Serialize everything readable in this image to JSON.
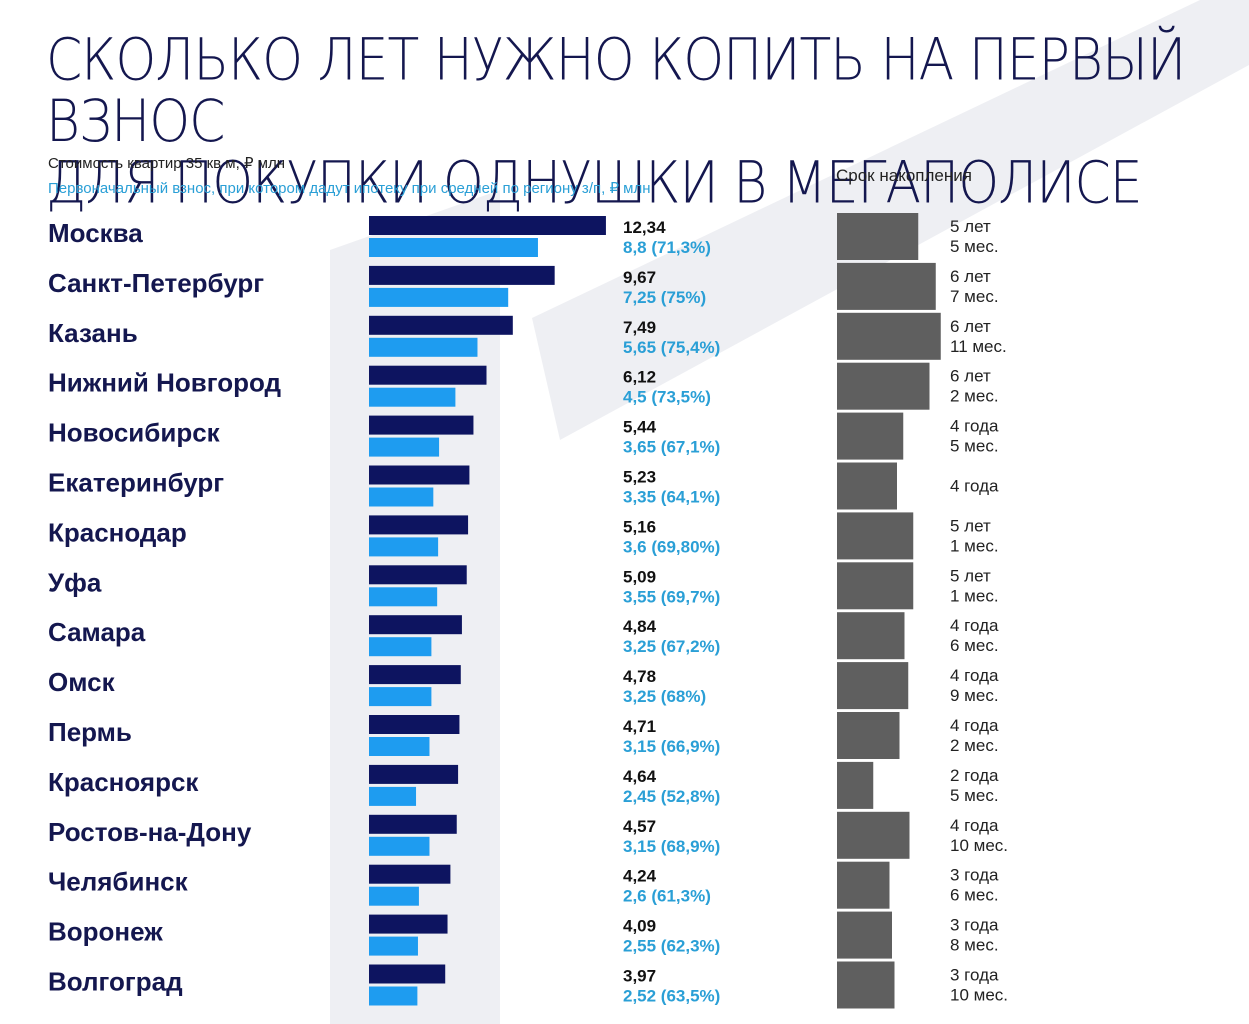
{
  "chart_data": {
    "type": "bar",
    "title_lines": [
      "Сколько лет нужно копить на первый взнос",
      "для покупки однушки в мегаполисе"
    ],
    "subtitle_price": "Стоимость квартир 35 кв м, ₽ млн",
    "subtitle_down": "Первоначальный взнос, при котором дадут ипотеку при средней по региону з/п, ₽ млн",
    "term_header": "Срок накопления",
    "colors": {
      "price": "#0d1460",
      "down": "#1e9cf0",
      "term": "#5f5f5f",
      "title": "#14174f",
      "down_label": "#2a9fd6"
    },
    "categories": [
      "Москва",
      "Санкт-Петербург",
      "Казань",
      "Нижний Новгород",
      "Новосибирск",
      "Екатеринбург",
      "Краснодар",
      "Уфа",
      "Самара",
      "Омск",
      "Пермь",
      "Красноярск",
      "Ростов-на-Дону",
      "Челябинск",
      "Воронеж",
      "Волгоград"
    ],
    "series": [
      {
        "name": "Стоимость квартир 35 кв м, ₽ млн",
        "values": [
          12.34,
          9.67,
          7.49,
          6.12,
          5.44,
          5.23,
          5.16,
          5.09,
          4.84,
          4.78,
          4.71,
          4.64,
          4.57,
          4.24,
          4.09,
          3.97
        ],
        "labels": [
          "12,34",
          "9,67",
          "7,49",
          "6,12",
          "5,44",
          "5,23",
          "5,16",
          "5,09",
          "4,84",
          "4,78",
          "4,71",
          "4,64",
          "4,57",
          "4,24",
          "4,09",
          "3,97"
        ]
      },
      {
        "name": "Первоначальный взнос, при котором дадут ипотеку при средней по региону з/п, ₽ млн",
        "values": [
          8.8,
          7.25,
          5.65,
          4.5,
          3.65,
          3.35,
          3.6,
          3.55,
          3.25,
          3.25,
          3.15,
          2.45,
          3.15,
          2.6,
          2.55,
          2.52
        ],
        "labels": [
          "8,8 (71,3%)",
          "7,25 (75%)",
          "5,65 (75,4%)",
          "4,5 (73,5%)",
          "3,65 (67,1%)",
          "3,35 (64,1%)",
          "3,6 (69,80%)",
          "3,55 (69,7%)",
          "3,25 (67,2%)",
          "3,25 (68%)",
          "3,15 (66,9%)",
          "2,45 (52,8%)",
          "3,15 (68,9%)",
          "2,6 (61,3%)",
          "2,55 (62,3%)",
          "2,52 (63,5%)"
        ]
      },
      {
        "name": "Срок накопления",
        "values_months": [
          65,
          79,
          83,
          74,
          53,
          48,
          61,
          61,
          54,
          57,
          50,
          29,
          58,
          42,
          44,
          46
        ],
        "label_line1": [
          "5 лет",
          "6 лет",
          "6 лет",
          "6 лет",
          "4 года",
          "4 года",
          "5 лет",
          "5 лет",
          "4 года",
          "4 года",
          "4 года",
          "2 года",
          "4 года",
          "3 года",
          "3 года",
          "3 года"
        ],
        "label_line2": [
          "5 мес.",
          "7 мес.",
          "11 мес.",
          "2 мес.",
          "5 мес.",
          "",
          "1 мес.",
          "1 мес.",
          "6 мес.",
          "9 мес.",
          "2 мес.",
          "5 мес.",
          "10 мес.",
          "6 мес.",
          "8 мес.",
          "10 мес."
        ]
      }
    ]
  }
}
